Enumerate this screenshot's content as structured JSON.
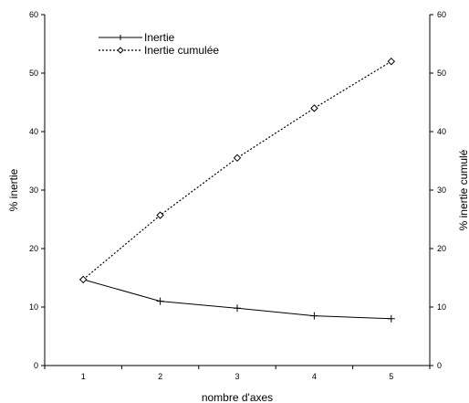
{
  "chart_data": {
    "type": "line",
    "x": [
      1,
      2,
      3,
      4,
      5
    ],
    "x_ticks": [
      "1",
      "2",
      "3",
      "4",
      "5"
    ],
    "xlabel": "nombre d'axes",
    "ylabel_left": "% inertie",
    "ylabel_right": "% inertie cumulé",
    "ylim_left": [
      0,
      60
    ],
    "ylim_right": [
      0,
      60
    ],
    "y_ticks": [
      "0",
      "10",
      "20",
      "30",
      "40",
      "50",
      "60"
    ],
    "grid": false,
    "legend_position": "top-left",
    "series": [
      {
        "name": "Inertie",
        "axis": "left",
        "style": "solid",
        "marker": "plus",
        "values": [
          14.7,
          11.0,
          9.8,
          8.5,
          8.0
        ]
      },
      {
        "name": "Inertie cumulée",
        "axis": "right",
        "style": "dotted",
        "marker": "diamond",
        "values": [
          14.7,
          25.7,
          35.5,
          44.0,
          52.0
        ]
      }
    ]
  }
}
